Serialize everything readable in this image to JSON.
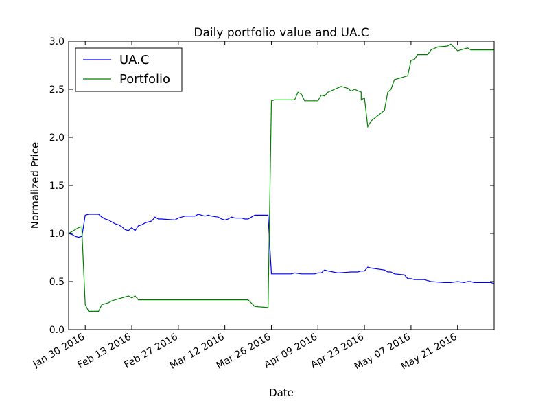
{
  "chart_data": {
    "type": "line",
    "title": "Daily portfolio value and UA.C",
    "xlabel": "Date",
    "ylabel": "Normalized Price",
    "xlim": [
      "2016-01-25",
      "2016-06-01"
    ],
    "ylim": [
      0.0,
      3.0
    ],
    "yticks": [
      0.0,
      0.5,
      1.0,
      1.5,
      2.0,
      2.5,
      3.0
    ],
    "ytick_labels": [
      "0.0",
      "0.5",
      "1.0",
      "1.5",
      "2.0",
      "2.5",
      "3.0"
    ],
    "xticks": [
      "2016-01-30",
      "2016-02-13",
      "2016-02-27",
      "2016-03-12",
      "2016-03-26",
      "2016-04-09",
      "2016-04-23",
      "2016-05-07",
      "2016-05-21"
    ],
    "xtick_labels": [
      "Jan 30 2016",
      "Feb 13 2016",
      "Feb 27 2016",
      "Mar 12 2016",
      "Mar 26 2016",
      "Apr 09 2016",
      "Apr 23 2016",
      "May 07 2016",
      "May 21 2016"
    ],
    "grid": false,
    "legend_position": "top-left",
    "series": [
      {
        "name": "UA.C",
        "color": "#0000ff",
        "points": [
          [
            "2016-01-25",
            1.0
          ],
          [
            "2016-01-26",
            0.99
          ],
          [
            "2016-01-27",
            0.97
          ],
          [
            "2016-01-28",
            0.96
          ],
          [
            "2016-01-29",
            0.97
          ],
          [
            "2016-01-30",
            1.19
          ],
          [
            "2016-01-31",
            1.2
          ],
          [
            "2016-02-02",
            1.2
          ],
          [
            "2016-02-03",
            1.2
          ],
          [
            "2016-02-04",
            1.17
          ],
          [
            "2016-02-05",
            1.15
          ],
          [
            "2016-02-06",
            1.14
          ],
          [
            "2016-02-08",
            1.1
          ],
          [
            "2016-02-09",
            1.09
          ],
          [
            "2016-02-10",
            1.07
          ],
          [
            "2016-02-11",
            1.04
          ],
          [
            "2016-02-12",
            1.03
          ],
          [
            "2016-02-13",
            1.06
          ],
          [
            "2016-02-14",
            1.03
          ],
          [
            "2016-02-15",
            1.08
          ],
          [
            "2016-02-16",
            1.09
          ],
          [
            "2016-02-17",
            1.11
          ],
          [
            "2016-02-19",
            1.13
          ],
          [
            "2016-02-20",
            1.17
          ],
          [
            "2016-02-21",
            1.15
          ],
          [
            "2016-02-22",
            1.15
          ],
          [
            "2016-02-26",
            1.14
          ],
          [
            "2016-02-27",
            1.16
          ],
          [
            "2016-02-28",
            1.17
          ],
          [
            "2016-02-29",
            1.18
          ],
          [
            "2016-03-03",
            1.18
          ],
          [
            "2016-03-04",
            1.2
          ],
          [
            "2016-03-05",
            1.19
          ],
          [
            "2016-03-06",
            1.18
          ],
          [
            "2016-03-07",
            1.19
          ],
          [
            "2016-03-08",
            1.18
          ],
          [
            "2016-03-10",
            1.17
          ],
          [
            "2016-03-11",
            1.15
          ],
          [
            "2016-03-12",
            1.14
          ],
          [
            "2016-03-13",
            1.15
          ],
          [
            "2016-03-14",
            1.17
          ],
          [
            "2016-03-15",
            1.16
          ],
          [
            "2016-03-17",
            1.16
          ],
          [
            "2016-03-18",
            1.15
          ],
          [
            "2016-03-19",
            1.15
          ],
          [
            "2016-03-20",
            1.17
          ],
          [
            "2016-03-21",
            1.19
          ],
          [
            "2016-03-24",
            1.19
          ],
          [
            "2016-03-25",
            1.19
          ],
          [
            "2016-03-26",
            0.58
          ],
          [
            "2016-03-27",
            0.58
          ],
          [
            "2016-04-01",
            0.58
          ],
          [
            "2016-04-02",
            0.59
          ],
          [
            "2016-04-04",
            0.58
          ],
          [
            "2016-04-08",
            0.58
          ],
          [
            "2016-04-09",
            0.59
          ],
          [
            "2016-04-10",
            0.59
          ],
          [
            "2016-04-11",
            0.62
          ],
          [
            "2016-04-12",
            0.61
          ],
          [
            "2016-04-15",
            0.59
          ],
          [
            "2016-04-19",
            0.6
          ],
          [
            "2016-04-21",
            0.6
          ],
          [
            "2016-04-22",
            0.61
          ],
          [
            "2016-04-23",
            0.61
          ],
          [
            "2016-04-24",
            0.65
          ],
          [
            "2016-04-25",
            0.64
          ],
          [
            "2016-04-29",
            0.62
          ],
          [
            "2016-04-30",
            0.6
          ],
          [
            "2016-05-01",
            0.6
          ],
          [
            "2016-05-02",
            0.58
          ],
          [
            "2016-05-05",
            0.57
          ],
          [
            "2016-05-06",
            0.53
          ],
          [
            "2016-05-07",
            0.53
          ],
          [
            "2016-05-08",
            0.52
          ],
          [
            "2016-05-11",
            0.52
          ],
          [
            "2016-05-12",
            0.51
          ],
          [
            "2016-05-13",
            0.5
          ],
          [
            "2016-05-17",
            0.49
          ],
          [
            "2016-05-19",
            0.49
          ],
          [
            "2016-05-21",
            0.5
          ],
          [
            "2016-05-23",
            0.49
          ],
          [
            "2016-05-24",
            0.5
          ],
          [
            "2016-05-25",
            0.5
          ],
          [
            "2016-05-26",
            0.49
          ],
          [
            "2016-05-31",
            0.49
          ],
          [
            "2016-06-01",
            0.48
          ]
        ]
      },
      {
        "name": "Portfolio",
        "color": "#008000",
        "points": [
          [
            "2016-01-25",
            1.0
          ],
          [
            "2016-01-26",
            1.02
          ],
          [
            "2016-01-27",
            1.04
          ],
          [
            "2016-01-28",
            1.06
          ],
          [
            "2016-01-29",
            1.07
          ],
          [
            "2016-01-29",
            1.02
          ],
          [
            "2016-01-30",
            0.26
          ],
          [
            "2016-01-31",
            0.19
          ],
          [
            "2016-02-03",
            0.19
          ],
          [
            "2016-02-04",
            0.26
          ],
          [
            "2016-02-05",
            0.27
          ],
          [
            "2016-02-06",
            0.28
          ],
          [
            "2016-02-07",
            0.3
          ],
          [
            "2016-02-08",
            0.31
          ],
          [
            "2016-02-12",
            0.35
          ],
          [
            "2016-02-13",
            0.33
          ],
          [
            "2016-02-14",
            0.35
          ],
          [
            "2016-02-15",
            0.31
          ],
          [
            "2016-02-19",
            0.31
          ],
          [
            "2016-03-01",
            0.31
          ],
          [
            "2016-03-19",
            0.31
          ],
          [
            "2016-03-21",
            0.24
          ],
          [
            "2016-03-25",
            0.23
          ],
          [
            "2016-03-26",
            2.38
          ],
          [
            "2016-03-27",
            2.39
          ],
          [
            "2016-04-02",
            2.39
          ],
          [
            "2016-04-03",
            2.47
          ],
          [
            "2016-04-04",
            2.45
          ],
          [
            "2016-04-05",
            2.38
          ],
          [
            "2016-04-08",
            2.38
          ],
          [
            "2016-04-09",
            2.38
          ],
          [
            "2016-04-10",
            2.44
          ],
          [
            "2016-04-11",
            2.43
          ],
          [
            "2016-04-12",
            2.47
          ],
          [
            "2016-04-14",
            2.5
          ],
          [
            "2016-04-16",
            2.53
          ],
          [
            "2016-04-18",
            2.51
          ],
          [
            "2016-04-19",
            2.48
          ],
          [
            "2016-04-20",
            2.5
          ],
          [
            "2016-04-22",
            2.47
          ],
          [
            "2016-04-22",
            2.39
          ],
          [
            "2016-04-23",
            2.41
          ],
          [
            "2016-04-24",
            2.11
          ],
          [
            "2016-04-25",
            2.17
          ],
          [
            "2016-04-29",
            2.28
          ],
          [
            "2016-04-30",
            2.47
          ],
          [
            "2016-05-01",
            2.5
          ],
          [
            "2016-05-02",
            2.6
          ],
          [
            "2016-05-06",
            2.64
          ],
          [
            "2016-05-07",
            2.8
          ],
          [
            "2016-05-08",
            2.81
          ],
          [
            "2016-05-09",
            2.86
          ],
          [
            "2016-05-12",
            2.86
          ],
          [
            "2016-05-13",
            2.91
          ],
          [
            "2016-05-15",
            2.94
          ],
          [
            "2016-05-18",
            2.95
          ],
          [
            "2016-05-19",
            2.97
          ],
          [
            "2016-05-21",
            2.9
          ],
          [
            "2016-05-23",
            2.92
          ],
          [
            "2016-05-24",
            2.93
          ],
          [
            "2016-05-25",
            2.91
          ],
          [
            "2016-06-01",
            2.91
          ]
        ]
      }
    ]
  }
}
